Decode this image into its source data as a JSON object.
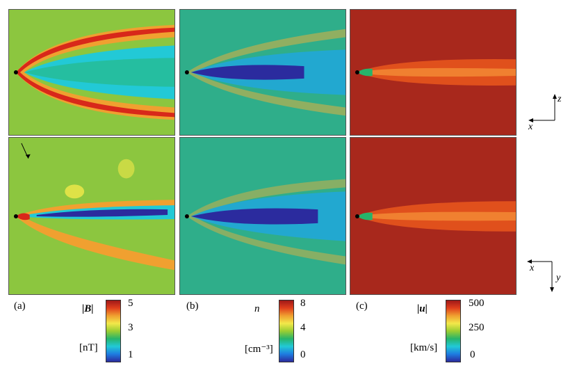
{
  "panels": {
    "a": {
      "label": "(a)",
      "quantity": "|B|",
      "unit": "[nT]",
      "ticks": [
        "5",
        "3",
        "1"
      ]
    },
    "b": {
      "label": "(b)",
      "quantity": "n",
      "unit": "[cm⁻³]",
      "ticks": [
        "8",
        "4",
        "0"
      ]
    },
    "c": {
      "label": "(c)",
      "quantity": "|u|",
      "unit": "[km/s]",
      "ticks": [
        "500",
        "250",
        "0"
      ]
    }
  },
  "axes_top": {
    "vertical": "z",
    "horizontal": "x"
  },
  "axes_bottom": {
    "horizontal": "x",
    "vertical": "y"
  },
  "colormap": [
    "#2b2b9e",
    "#1e7ce0",
    "#22c9d6",
    "#27b46a",
    "#9acd32",
    "#f2e84a",
    "#f0a030",
    "#e0401c",
    "#a01818"
  ]
}
